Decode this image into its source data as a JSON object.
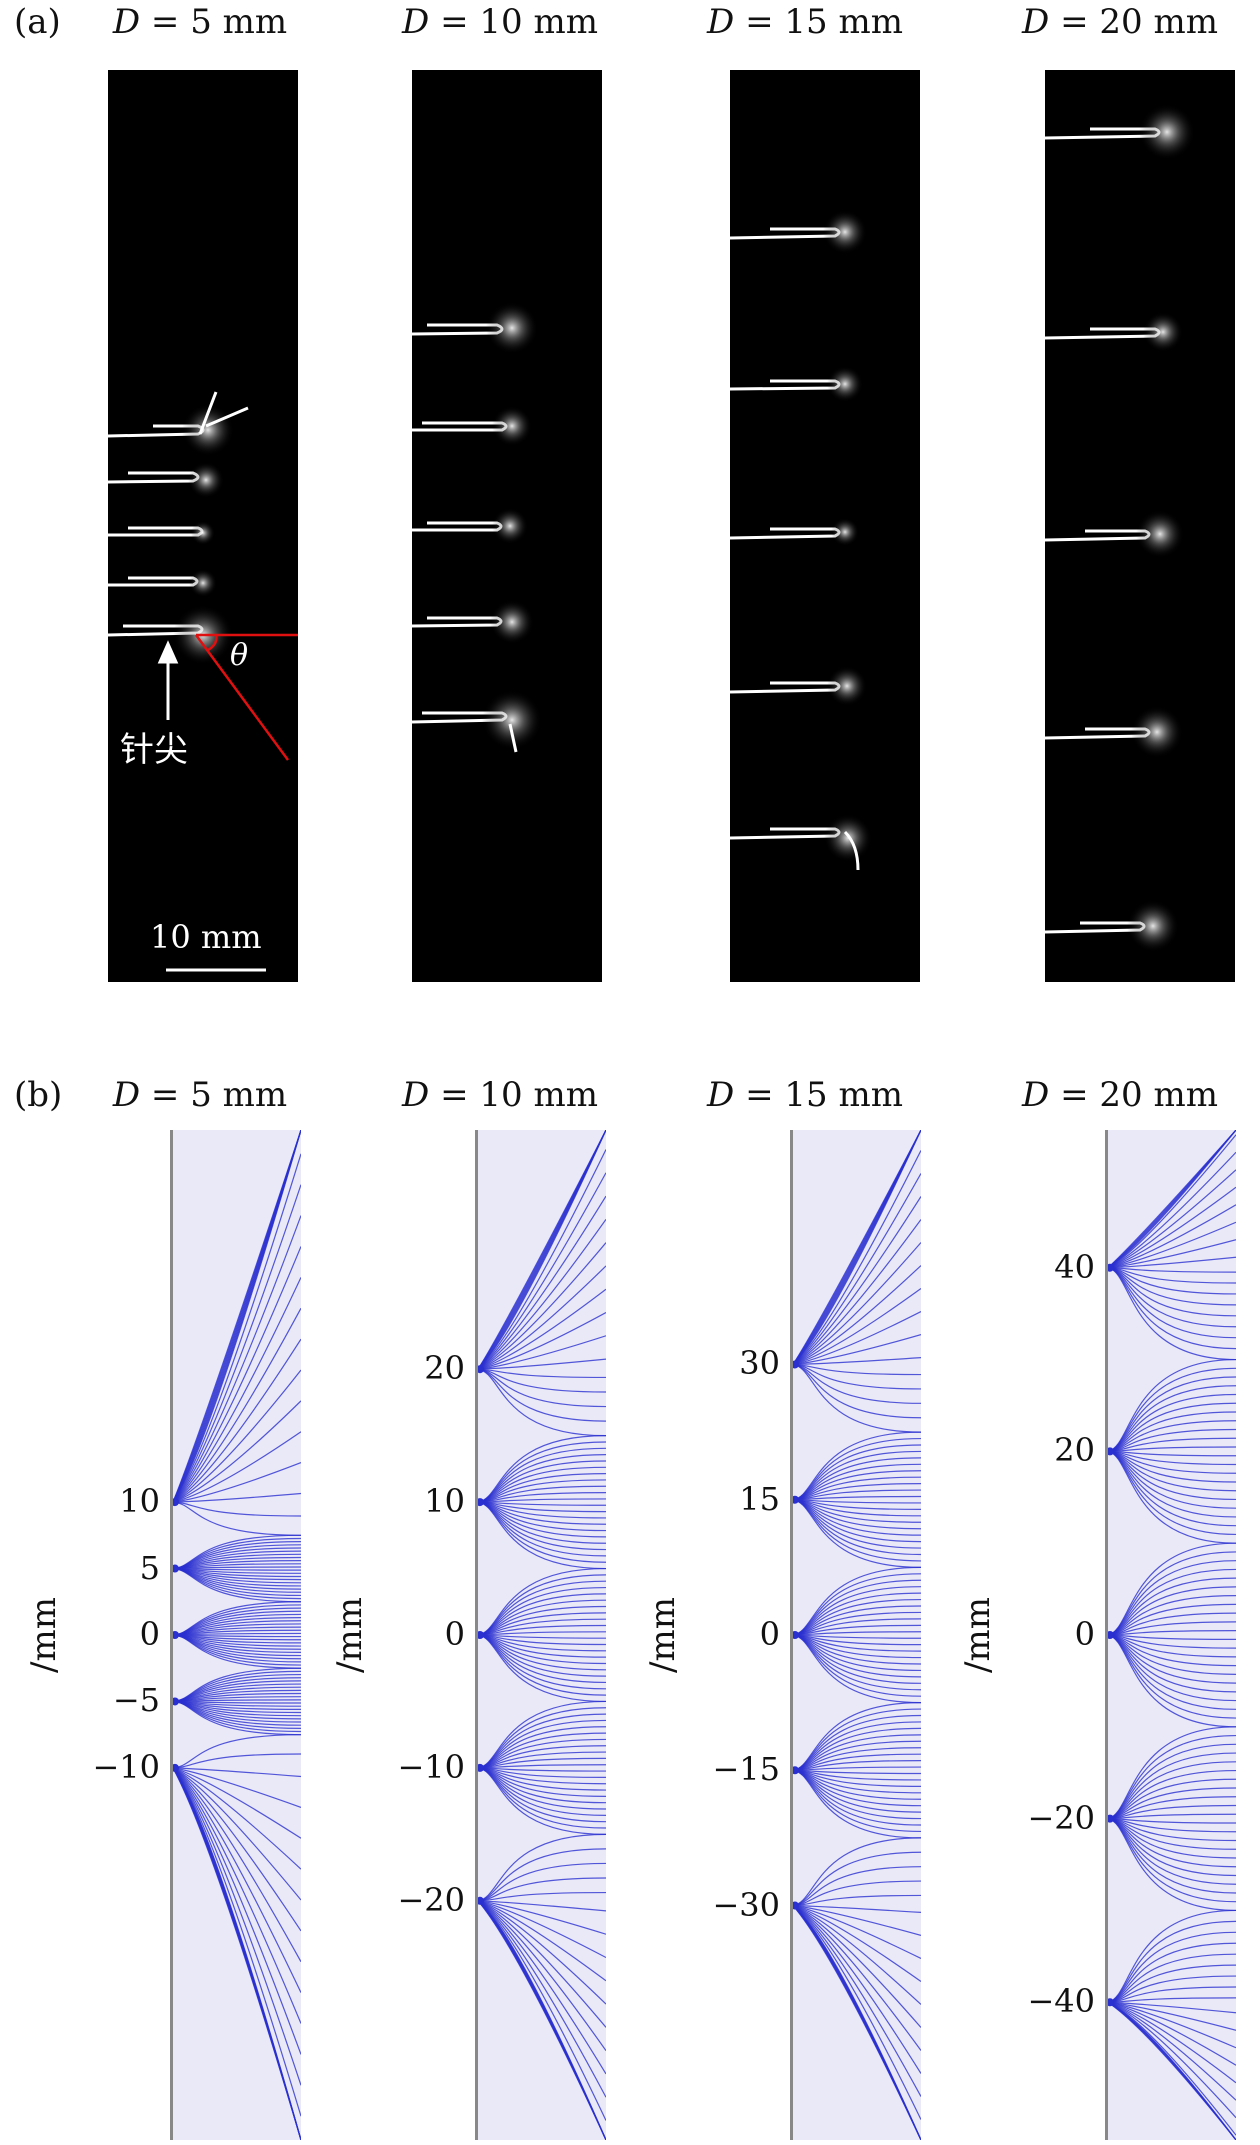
{
  "panel_a": {
    "label": "(a)",
    "columns": [
      {
        "title_var": "D",
        "title_eq": " = 5 mm"
      },
      {
        "title_var": "D",
        "title_eq": " = 10 mm"
      },
      {
        "title_var": "D",
        "title_eq": " = 15 mm"
      },
      {
        "title_var": "D",
        "title_eq": " = 20 mm"
      }
    ],
    "needle_label": "针尖",
    "angle_label": "θ",
    "scale_bar": "10 mm"
  },
  "panel_b": {
    "label": "(b)",
    "axis_unit": "/mm",
    "columns": [
      {
        "title_var": "D",
        "title_eq": " = 5 mm",
        "ticks": [
          "10",
          "5",
          "0",
          "−5",
          "−10"
        ],
        "tick_values": [
          10,
          5,
          0,
          -5,
          -10
        ],
        "range": [
          -38,
          38
        ]
      },
      {
        "title_var": "D",
        "title_eq": " = 10 mm",
        "ticks": [
          "20",
          "10",
          "0",
          "−10",
          "−20"
        ],
        "tick_values": [
          20,
          10,
          0,
          -10,
          -20
        ],
        "range": [
          -38,
          38
        ]
      },
      {
        "title_var": "D",
        "title_eq": " = 15 mm",
        "ticks": [
          "30",
          "15",
          "0",
          "−15",
          "−30"
        ],
        "tick_values": [
          30,
          15,
          0,
          -15,
          -30
        ],
        "range": [
          -56,
          56
        ]
      },
      {
        "title_var": "D",
        "title_eq": " = 20 mm",
        "ticks": [
          "40",
          "20",
          "0",
          "−20",
          "−40"
        ],
        "tick_values": [
          40,
          20,
          0,
          -20,
          -40
        ],
        "range": [
          -55,
          55
        ]
      }
    ]
  },
  "colors": {
    "field_line": "#2a2fd0",
    "sim_bg": "#e9e9f7",
    "angle_mark": "#e01010"
  }
}
